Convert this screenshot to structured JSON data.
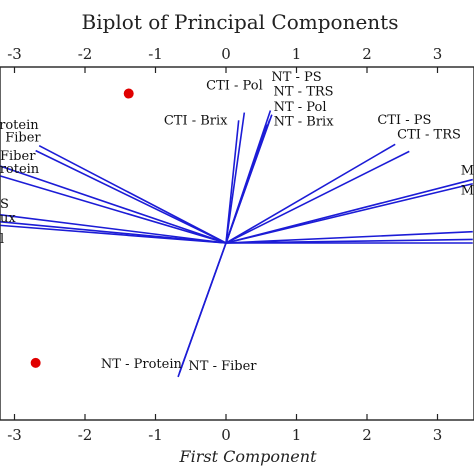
{
  "chart_data": {
    "type": "scatter",
    "title": "Biplot of Principal Components",
    "xlabel": "First Component",
    "ylabel": "",
    "xlim": [
      -3.2,
      3.5
    ],
    "ylim": [
      -2.4,
      2.3
    ],
    "x_ticks": [
      -3,
      -2,
      -1,
      0,
      1,
      2,
      3
    ],
    "x_tick_labels": [
      "-3",
      "-2",
      "-1",
      "0",
      "1",
      "2",
      "3"
    ],
    "points": [
      {
        "x": -1.38,
        "y": 2.12,
        "color": "#e00000"
      },
      {
        "x": -2.7,
        "y": -1.7,
        "color": "#e00000"
      }
    ],
    "vectors": [
      {
        "label": "CTI - Pol",
        "x": 0.26,
        "y": 1.85,
        "label_x": 0.12,
        "label_y": 2.18
      },
      {
        "label": "CTI - Brix",
        "x": 0.18,
        "y": 1.74,
        "label_x": -0.43,
        "label_y": 1.68
      },
      {
        "label": "NT - PS",
        "x": 0.63,
        "y": 1.88,
        "label_x": 1.0,
        "label_y": 2.3
      },
      {
        "label": "NT - TRS",
        "x": 0.65,
        "y": 1.82,
        "label_x": 1.1,
        "label_y": 2.09
      },
      {
        "label": "NT - Pol",
        "x": 0.62,
        "y": 1.75,
        "label_x": 1.05,
        "label_y": 1.87
      },
      {
        "label": "NT - Brix",
        "x": 0.58,
        "y": 1.68,
        "label_x": 1.1,
        "label_y": 1.67
      },
      {
        "label": "CTI - PS",
        "x": 2.4,
        "y": 1.4,
        "label_x": 2.53,
        "label_y": 1.69
      },
      {
        "label": "CTI - TRS",
        "x": 2.6,
        "y": 1.3,
        "label_x": 2.88,
        "label_y": 1.48
      },
      {
        "label": "M",
        "x": 3.5,
        "y": 0.9,
        "label_x": 3.5,
        "label_y": 0.97
      },
      {
        "label": "M",
        "x": 3.5,
        "y": 0.84,
        "label_x": 3.5,
        "label_y": 0.69
      },
      {
        "label": "",
        "x": 3.5,
        "y": 0.16
      },
      {
        "label": "",
        "x": 3.5,
        "y": 0.05
      },
      {
        "label": "",
        "x": 3.5,
        "y": 0.0
      },
      {
        "label": "Protein",
        "x": -2.65,
        "y": 1.38,
        "label_x": -3.0,
        "label_y": 1.62
      },
      {
        "label": "Fiber",
        "x": -2.7,
        "y": 1.31,
        "label_x": -2.88,
        "label_y": 1.44
      },
      {
        "label": "Fiber",
        "x": -3.2,
        "y": 1.09,
        "label_x": -3.08,
        "label_y": 1.18
      },
      {
        "label": "rotein",
        "x": -3.2,
        "y": 0.95,
        "label_x": -2.93,
        "label_y": 0.99
      },
      {
        "label": "S",
        "x": -3.2,
        "y": 0.4,
        "label_x": -3.2,
        "label_y": 0.5
      },
      {
        "label": "ux",
        "x": -3.2,
        "y": 0.3,
        "label_x": -3.12,
        "label_y": 0.3
      },
      {
        "label": "l",
        "x": -3.2,
        "y": 0.25,
        "label_x": -3.2,
        "label_y": 0.0
      },
      {
        "label": "NT - Protein",
        "x": -0.66,
        "y": -1.84,
        "label_x": -1.2,
        "label_y": -1.77
      },
      {
        "label": "NT - Fiber",
        "x": -0.68,
        "y": -1.9,
        "label_x": -0.05,
        "label_y": -1.8
      }
    ],
    "grid": false,
    "legend": false,
    "colors": {
      "vectors": "#1c1cd6",
      "points": "#e00000",
      "frame": "#222222"
    }
  }
}
